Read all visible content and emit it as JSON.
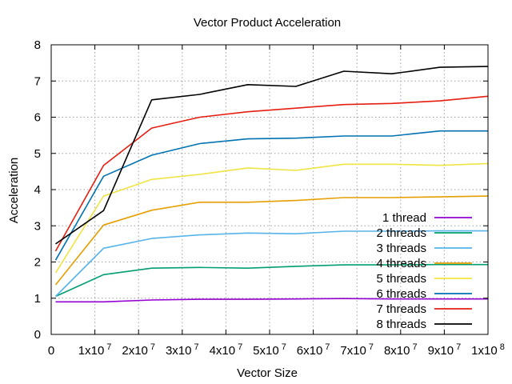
{
  "chart_data": {
    "type": "line",
    "title": "Vector Product Acceleration",
    "xlabel": "Vector Size",
    "ylabel": "Acceleration",
    "xlim": [
      0,
      100000000
    ],
    "ylim": [
      0,
      8
    ],
    "grid": true,
    "legend_position": "bottom-right",
    "x_ticks": [
      {
        "value": 0,
        "mant": "0",
        "exp": ""
      },
      {
        "value": 10000000,
        "mant": "1x10",
        "exp": "7"
      },
      {
        "value": 20000000,
        "mant": "2x10",
        "exp": "7"
      },
      {
        "value": 30000000,
        "mant": "3x10",
        "exp": "7"
      },
      {
        "value": 40000000,
        "mant": "4x10",
        "exp": "7"
      },
      {
        "value": 50000000,
        "mant": "5x10",
        "exp": "7"
      },
      {
        "value": 60000000,
        "mant": "6x10",
        "exp": "7"
      },
      {
        "value": 70000000,
        "mant": "7x10",
        "exp": "7"
      },
      {
        "value": 80000000,
        "mant": "8x10",
        "exp": "7"
      },
      {
        "value": 90000000,
        "mant": "9x10",
        "exp": "7"
      },
      {
        "value": 100000000,
        "mant": "1x10",
        "exp": "8"
      }
    ],
    "y_ticks": [
      "0",
      "1",
      "2",
      "3",
      "4",
      "5",
      "6",
      "7",
      "8"
    ],
    "x": [
      1000000,
      12000000,
      23000000,
      34000000,
      45000000,
      56000000,
      67000000,
      78000000,
      89000000,
      100000000
    ],
    "series": [
      {
        "name": "1 thread",
        "color": "#9400d3",
        "values": [
          0.9,
          0.9,
          0.95,
          0.97,
          0.97,
          0.98,
          0.99,
          0.98,
          0.98,
          0.98
        ]
      },
      {
        "name": "2 threads",
        "color": "#009e73",
        "values": [
          1.05,
          1.65,
          1.83,
          1.85,
          1.83,
          1.88,
          1.92,
          1.92,
          1.93,
          1.93
        ]
      },
      {
        "name": "3 threads",
        "color": "#56b4e9",
        "values": [
          1.05,
          2.38,
          2.65,
          2.75,
          2.8,
          2.78,
          2.85,
          2.85,
          2.86,
          2.86
        ]
      },
      {
        "name": "4 threads",
        "color": "#e69f00",
        "values": [
          1.37,
          3.02,
          3.43,
          3.65,
          3.65,
          3.7,
          3.78,
          3.78,
          3.8,
          3.82
        ]
      },
      {
        "name": "5 threads",
        "color": "#f0e442",
        "values": [
          1.7,
          3.82,
          4.28,
          4.42,
          4.6,
          4.53,
          4.7,
          4.7,
          4.67,
          4.72
        ]
      },
      {
        "name": "6 threads",
        "color": "#0072b2",
        "values": [
          2.05,
          4.37,
          4.95,
          5.27,
          5.4,
          5.42,
          5.48,
          5.48,
          5.62,
          5.62
        ]
      },
      {
        "name": "7 threads",
        "color": "#e51e10",
        "values": [
          2.3,
          4.67,
          5.7,
          6.0,
          6.15,
          6.25,
          6.35,
          6.38,
          6.45,
          6.58
        ]
      },
      {
        "name": "8 threads",
        "color": "#000000",
        "values": [
          2.5,
          3.42,
          6.48,
          6.63,
          6.9,
          6.85,
          7.27,
          7.2,
          7.38,
          7.4
        ]
      }
    ]
  }
}
